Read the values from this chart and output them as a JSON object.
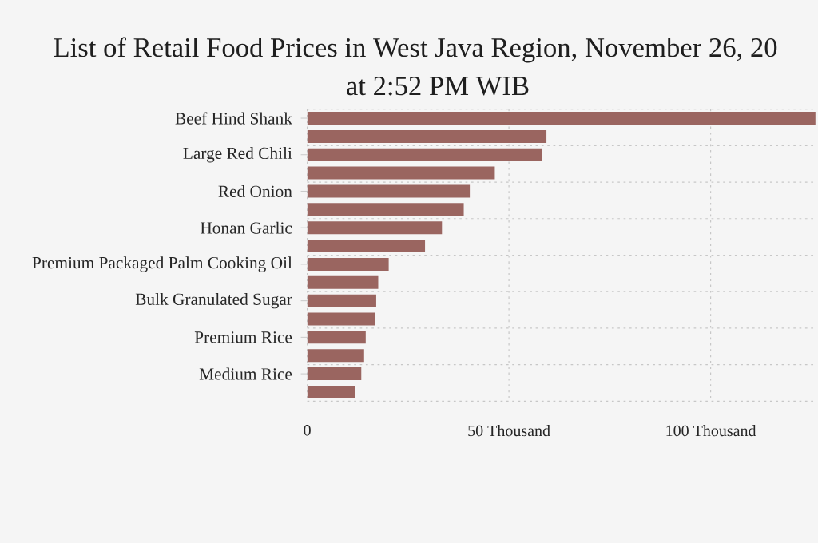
{
  "chart_data": {
    "type": "bar",
    "orientation": "horizontal",
    "title": "List of Retail Food Prices in West Java Region, November 26, 20",
    "subtitle": "at 2:52 PM WIB",
    "categories": [
      "Beef Hind Shank",
      null,
      "Large Red Chili",
      null,
      "Red Onion",
      null,
      "Honan Garlic",
      null,
      "Premium Packaged Palm Cooking Oil",
      null,
      "Bulk Granulated Sugar",
      null,
      "Premium Rice",
      null,
      "Medium Rice",
      null
    ],
    "values": [
      126,
      59.3,
      58.2,
      46.5,
      40.3,
      38.8,
      33.4,
      29.2,
      20.2,
      17.6,
      17.1,
      16.9,
      14.5,
      14.1,
      13.4,
      11.8
    ],
    "color": "#9a6560",
    "xlim": [
      0,
      126
    ],
    "xticks": [
      0,
      {
        "value": 50,
        "label": "50 Thousand"
      },
      {
        "value": 100,
        "label": "100 Thousand"
      }
    ],
    "grid": true
  }
}
